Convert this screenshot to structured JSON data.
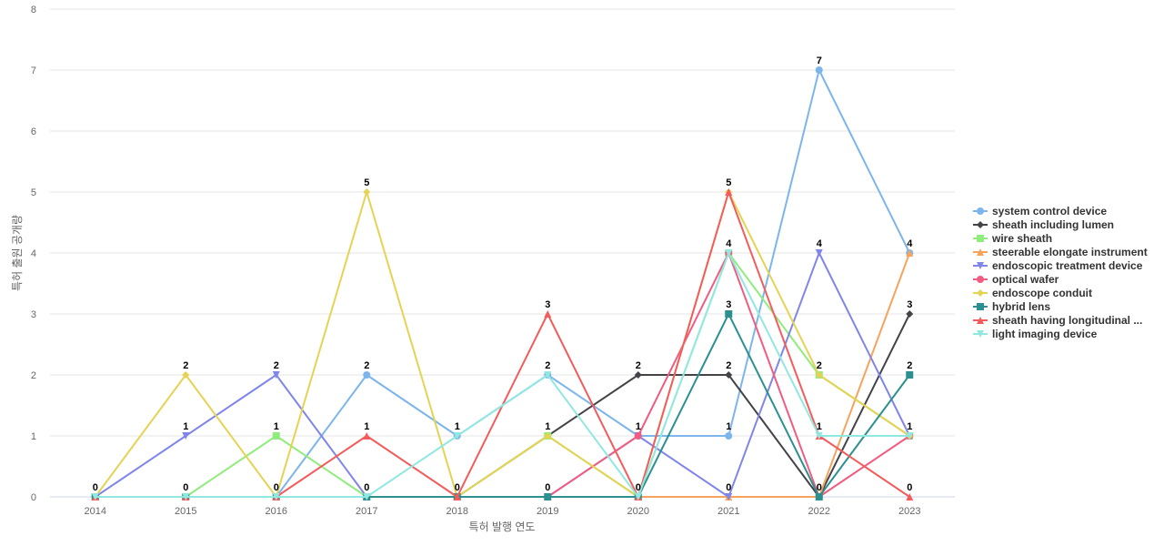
{
  "chart_data": {
    "type": "line",
    "xlabel": "특허 발행 연도",
    "ylabel": "특허 출원 공개량",
    "x": [
      "2014",
      "2015",
      "2016",
      "2017",
      "2018",
      "2019",
      "2020",
      "2021",
      "2022",
      "2023"
    ],
    "ylim": [
      0,
      8
    ],
    "yticks": [
      0,
      1,
      2,
      3,
      4,
      5,
      6,
      7,
      8
    ],
    "grid": true,
    "legend_position": "right",
    "series": [
      {
        "name": "system control device",
        "color": "#7cb5ec",
        "marker": "circle",
        "values": [
          0,
          0,
          0,
          2,
          1,
          2,
          1,
          1,
          7,
          4
        ],
        "labels": [
          null,
          null,
          null,
          2,
          1,
          2,
          null,
          1,
          7,
          4
        ]
      },
      {
        "name": "sheath including lumen",
        "color": "#434348",
        "marker": "diamond",
        "values": [
          0,
          0,
          0,
          0,
          0,
          1,
          2,
          2,
          0,
          3
        ],
        "labels": [
          null,
          null,
          null,
          null,
          null,
          null,
          2,
          2,
          null,
          3
        ]
      },
      {
        "name": "wire sheath",
        "color": "#90ed7d",
        "marker": "square",
        "values": [
          0,
          0,
          1,
          0,
          0,
          1,
          0,
          4,
          2,
          1
        ],
        "labels": [
          null,
          0,
          1,
          null,
          null,
          1,
          null,
          4,
          null,
          null
        ]
      },
      {
        "name": "steerable elongate instrument",
        "color": "#f7a35c",
        "marker": "triangle",
        "values": [
          0,
          0,
          0,
          0,
          0,
          0,
          0,
          0,
          0,
          4
        ],
        "labels": [
          null,
          null,
          null,
          null,
          null,
          null,
          null,
          null,
          null,
          null
        ]
      },
      {
        "name": "endoscopic treatment device",
        "color": "#8085e9",
        "marker": "triangle-down",
        "values": [
          0,
          1,
          2,
          0,
          0,
          0,
          1,
          0,
          4,
          1
        ],
        "labels": [
          0,
          1,
          2,
          0,
          null,
          0,
          null,
          0,
          4,
          1
        ]
      },
      {
        "name": "optical wafer",
        "color": "#f15c80",
        "marker": "circle",
        "values": [
          0,
          0,
          0,
          0,
          0,
          0,
          1,
          4,
          0,
          1
        ],
        "labels": [
          null,
          null,
          null,
          null,
          null,
          null,
          1,
          null,
          null,
          null
        ]
      },
      {
        "name": "endoscope conduit",
        "color": "#e4d354",
        "marker": "diamond",
        "values": [
          0,
          2,
          0,
          5,
          0,
          1,
          0,
          5,
          2,
          1
        ],
        "labels": [
          null,
          2,
          null,
          5,
          null,
          null,
          null,
          null,
          2,
          null
        ]
      },
      {
        "name": "hybrid lens",
        "color": "#2b908f",
        "marker": "square",
        "values": [
          0,
          0,
          0,
          0,
          0,
          0,
          0,
          3,
          0,
          2
        ],
        "labels": [
          null,
          null,
          null,
          null,
          null,
          null,
          0,
          3,
          0,
          2
        ]
      },
      {
        "name": "sheath having longitudinal ...",
        "color": "#f45b5b",
        "marker": "triangle",
        "values": [
          0,
          0,
          0,
          1,
          0,
          3,
          0,
          5,
          1,
          0
        ],
        "labels": [
          null,
          null,
          0,
          1,
          0,
          3,
          null,
          5,
          1,
          0
        ]
      },
      {
        "name": "light imaging device",
        "color": "#91e8e1",
        "marker": "triangle-down",
        "values": [
          0,
          0,
          0,
          0,
          1,
          2,
          0,
          4,
          1,
          1
        ],
        "labels": [
          null,
          null,
          null,
          null,
          null,
          null,
          null,
          null,
          null,
          null
        ]
      }
    ]
  }
}
